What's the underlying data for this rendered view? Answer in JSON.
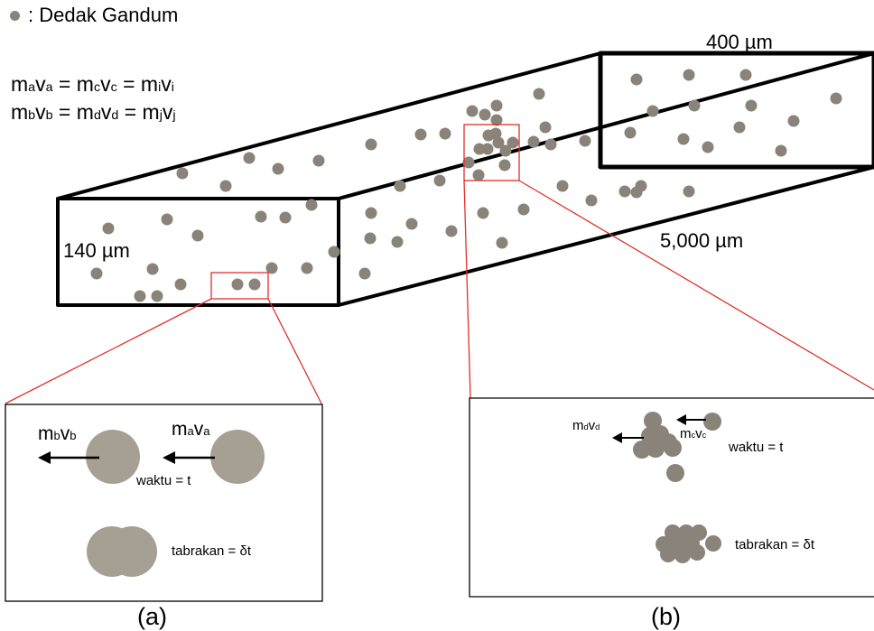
{
  "legend": {
    "label": ": Dedak Gandum"
  },
  "equations": {
    "line1": {
      "a_m": "m",
      "a_sub1": "a",
      "a_v": "v",
      "a_sub2": "a",
      "eq1": " = ",
      "c_m": "m",
      "c_sub1": "c",
      "c_v": "v",
      "c_sub2": "c",
      "eq2": " = ",
      "i_m": "m",
      "i_sub1": "i",
      "i_v": "v",
      "i_sub2": "i"
    },
    "line2": {
      "b_m": "m",
      "b_sub1": "b",
      "b_v": "v",
      "b_sub2": "b",
      "eq1": " = ",
      "d_m": "m",
      "d_sub1": "d",
      "d_v": "v",
      "d_sub2": "d",
      "eq2": " = ",
      "j_m": "m",
      "j_sub1": "j",
      "j_v": "v",
      "j_sub2": "j"
    }
  },
  "dimensions": {
    "height": "140 µm",
    "width": "400 µm",
    "length": "5,000 µm"
  },
  "inset_a": {
    "left_label": {
      "m": "m",
      "sub1": "b",
      "v": "v",
      "sub2": "b"
    },
    "right_label": {
      "m": "m",
      "sub1": "a",
      "v": "v",
      "sub2": "a"
    },
    "time_label": "waktu = t",
    "collision_label": "tabrakan = δt",
    "caption": "(a)"
  },
  "inset_b": {
    "left_label": {
      "m": "m",
      "sub1": "d",
      "v": "v",
      "sub2": "d"
    },
    "right_label": {
      "m": "m",
      "sub1": "c",
      "v": "v",
      "sub2": "c"
    },
    "time_label": "waktu = t",
    "collision_label": "tabrakan = δt",
    "caption": "(b)"
  },
  "colors": {
    "particle": "#8a837a",
    "zoom": "#e0302a",
    "outline": "#000000"
  }
}
